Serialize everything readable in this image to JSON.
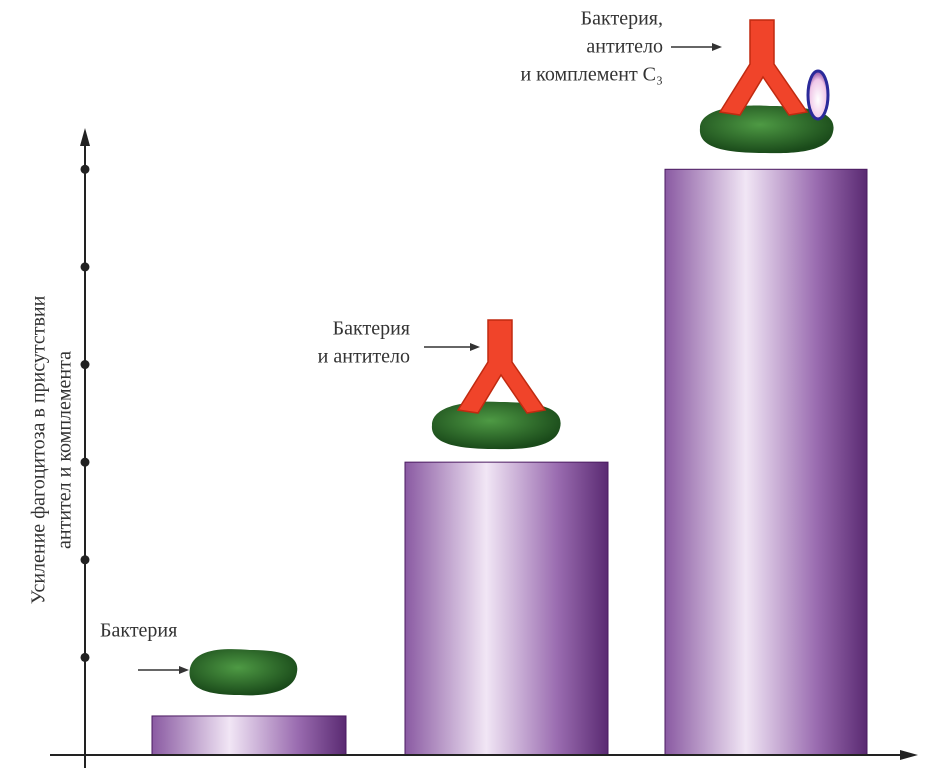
{
  "chart_data": {
    "type": "bar",
    "ylabel": [
      "Усиление фагоцитоза в присутствии",
      "антител и комплемента"
    ],
    "categories": [
      [
        "Бактерия"
      ],
      [
        "Бактерия",
        "и антитело"
      ],
      [
        "Бактерия,",
        "антитело",
        "и комплемент C₃"
      ]
    ],
    "values": [
      0.4,
      3,
      6
    ],
    "ylim": [
      0,
      6.3
    ],
    "yticks": [
      1,
      2,
      3,
      4,
      5,
      6
    ]
  }
}
